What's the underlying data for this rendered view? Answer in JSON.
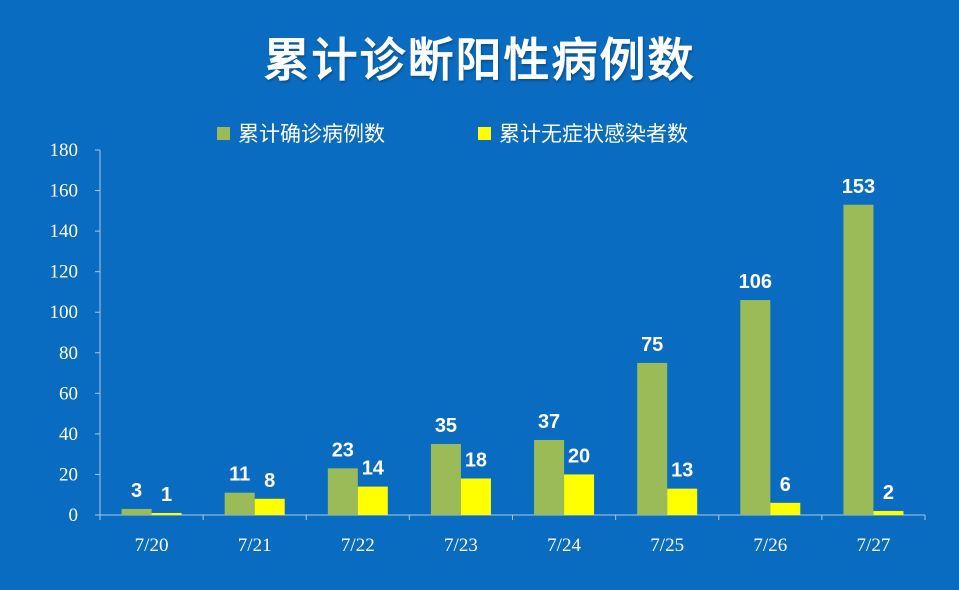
{
  "chart_data": {
    "type": "bar",
    "title": "累计诊断阳性病例数",
    "categories": [
      "7/20",
      "7/21",
      "7/22",
      "7/23",
      "7/24",
      "7/25",
      "7/26",
      "7/27"
    ],
    "series": [
      {
        "name": "累计确诊病例数",
        "values": [
          3,
          11,
          23,
          35,
          37,
          75,
          106,
          153
        ],
        "color": "#9bbb59"
      },
      {
        "name": "累计无症状感染者数",
        "values": [
          1,
          8,
          14,
          18,
          20,
          13,
          6,
          2
        ],
        "color": "#ffff00"
      }
    ],
    "ylim": [
      0,
      180
    ],
    "yticks": [
      0,
      20,
      40,
      60,
      80,
      100,
      120,
      140,
      160,
      180
    ],
    "grid": false,
    "legend": "top",
    "data_labels": true
  },
  "colors": {
    "background": "#0a6cc0",
    "axis": "#a9c8e8",
    "text": "#ffffff"
  }
}
